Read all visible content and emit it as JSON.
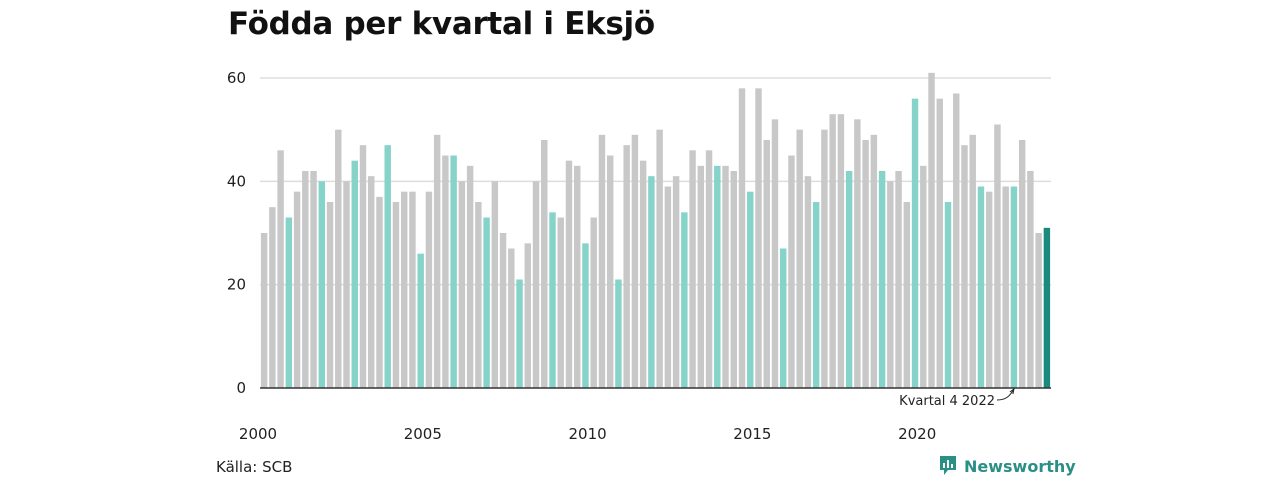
{
  "title": "Födda per kvartal i Eksjö",
  "source": "Källa: SCB",
  "brand": {
    "name": "Newsworthy"
  },
  "colors": {
    "default_bar": "#c8c8c8",
    "q4_bar": "#86d3c9",
    "highlight_bar": "#1a8a7f",
    "grid": "#dddddd",
    "axis": "#333333",
    "brand": "#2a8f84"
  },
  "chart_data": {
    "type": "bar",
    "title": "Födda per kvartal i Eksjö",
    "xlabel": "",
    "ylabel": "",
    "ylim": [
      0,
      60
    ],
    "yticks": [
      0,
      20,
      40,
      60
    ],
    "xticks": [
      "2000",
      "2005",
      "2010",
      "2015",
      "2020"
    ],
    "grid": true,
    "start_year": 2000,
    "values": [
      30,
      35,
      46,
      33,
      38,
      42,
      42,
      40,
      36,
      50,
      40,
      44,
      47,
      41,
      37,
      47,
      36,
      38,
      38,
      26,
      38,
      49,
      45,
      45,
      40,
      43,
      36,
      33,
      40,
      30,
      27,
      21,
      28,
      40,
      48,
      34,
      33,
      44,
      43,
      28,
      33,
      49,
      45,
      21,
      47,
      49,
      44,
      41,
      50,
      39,
      41,
      34,
      46,
      43,
      46,
      43,
      43,
      42,
      58,
      38,
      58,
      48,
      52,
      27,
      45,
      50,
      41,
      36,
      50,
      53,
      53,
      42,
      52,
      48,
      49,
      42,
      40,
      42,
      36,
      56,
      43,
      61,
      56,
      36,
      57,
      47,
      49,
      39,
      38,
      51,
      39,
      39,
      48,
      42,
      30,
      31
    ],
    "annotation": {
      "text": "Kvartal 4 2022",
      "index": 91
    },
    "highlight_index": 95
  }
}
